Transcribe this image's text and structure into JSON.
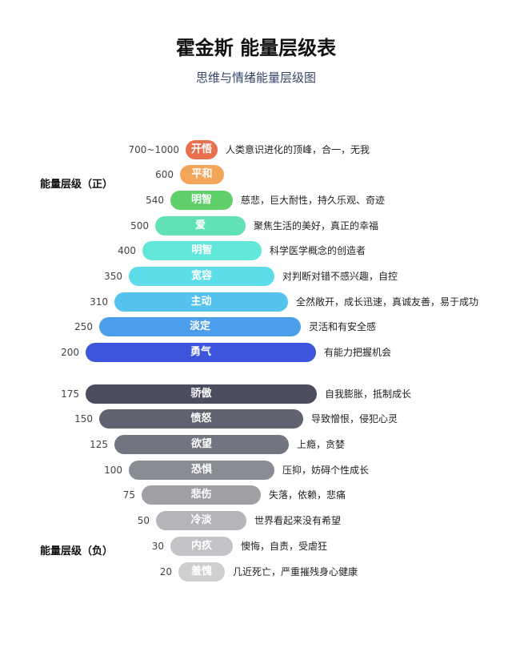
{
  "header": {
    "title": "霍金斯 能量层级表",
    "subtitle": "思维与情绪能量层级图"
  },
  "side_labels": {
    "positive": "能量层级（正）",
    "negative": "能量层级（负）"
  },
  "levels": [
    {
      "value": "700~1000",
      "name": "开悟",
      "desc": "人类意识进化的顶峰，合一，无我",
      "color": "#e8704f"
    },
    {
      "value": "600",
      "name": "平和",
      "desc": "",
      "color": "#f3a55a"
    },
    {
      "value": "540",
      "name": "明智",
      "desc": "慈悲，巨大耐性，持久乐观、奇迹",
      "color": "#5fcf6a"
    },
    {
      "value": "500",
      "name": "爱",
      "desc": "聚焦生活的美好，真正的幸福",
      "color": "#62e0b6"
    },
    {
      "value": "400",
      "name": "明智",
      "desc": "科学医学概念的创造者",
      "color": "#62e8d8"
    },
    {
      "value": "350",
      "name": "宽容",
      "desc": "对判断对错不感兴趣，自控",
      "color": "#5ddde9"
    },
    {
      "value": "310",
      "name": "主动",
      "desc": "全然敞开，成长迅速，真诚友善，易于成功",
      "color": "#56c3ef"
    },
    {
      "value": "250",
      "name": "淡定",
      "desc": "灵活和有安全感",
      "color": "#4b9eea"
    },
    {
      "value": "200",
      "name": "勇气",
      "desc": "有能力把握机会",
      "color": "#3c55dc"
    },
    {
      "value": "175",
      "name": "骄傲",
      "desc": "自我膨胀，抵制成长",
      "color": "#4b4d5f"
    },
    {
      "value": "150",
      "name": "愤怒",
      "desc": "导致憎恨，侵犯心灵",
      "color": "#60636f"
    },
    {
      "value": "125",
      "name": "欲望",
      "desc": "上瘾，贪婪",
      "color": "#727580"
    },
    {
      "value": "100",
      "name": "恐惧",
      "desc": "压抑，妨碍个性成长",
      "color": "#898c93"
    },
    {
      "value": "75",
      "name": "悲伤",
      "desc": "失落，依赖，悲痛",
      "color": "#9ea0a5"
    },
    {
      "value": "50",
      "name": "冷淡",
      "desc": "世界看起来没有希望",
      "color": "#b4b5b9"
    },
    {
      "value": "30",
      "name": "内疚",
      "desc": "懊悔，自责，受虐狂",
      "color": "#c2c3c6"
    },
    {
      "value": "20",
      "name": "羞愧",
      "desc": "几近死亡，严重摧残身心健康",
      "color": "#cecfd1"
    }
  ]
}
